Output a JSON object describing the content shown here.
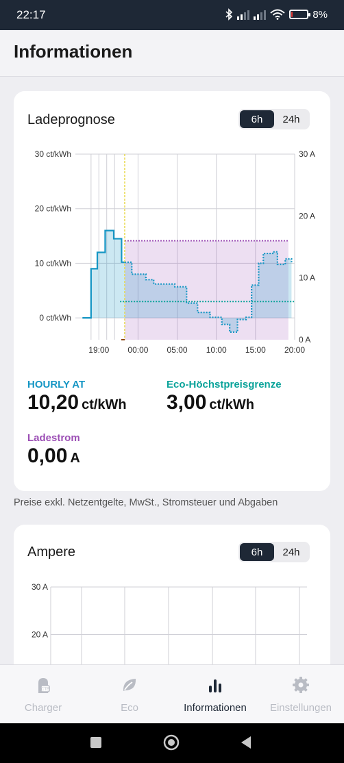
{
  "status": {
    "time": "22:17",
    "battery": "8%",
    "battery_level": 0.08
  },
  "header": {
    "title": "Informationen"
  },
  "forecast_card": {
    "title": "Ladeprognose",
    "range_options": [
      "6h",
      "24h"
    ],
    "selected_range": "6h",
    "metrics": {
      "hourly_label": "HOURLY AT",
      "hourly_value": "10,20",
      "hourly_unit": "ct/kWh",
      "eco_label": "Eco-Höchstpreisgrenze",
      "eco_value": "3,00",
      "eco_unit": "ct/kWh",
      "current_label": "Ladestrom",
      "current_value": "0,00",
      "current_unit": "A"
    }
  },
  "price_note": "Preise exkl. Netzentgelte, MwSt., Stromsteuer und Abgaben",
  "ampere_card": {
    "title": "Ampere",
    "range_options": [
      "6h",
      "24h"
    ],
    "selected_range": "6h"
  },
  "nav": {
    "items": [
      {
        "label": "Charger",
        "icon": "charger-icon",
        "active": false
      },
      {
        "label": "Eco",
        "icon": "leaf-icon",
        "active": false
      },
      {
        "label": "Informationen",
        "icon": "bar-chart-icon",
        "active": true
      },
      {
        "label": "Einstellungen",
        "icon": "gear-icon",
        "active": false
      }
    ]
  },
  "colors": {
    "dark": "#1e2836",
    "price": "#1596c4",
    "eco": "#0aa39a",
    "current": "#9c4fb5",
    "now_line": "#e8d84a"
  },
  "chart_data": [
    {
      "type": "line",
      "x_axis": "hour of day",
      "x_ticks": [
        "19:00",
        "00:00",
        "05:00",
        "10:00",
        "15:00",
        "20:00"
      ],
      "xlim": [
        16,
        44
      ],
      "y_left_ticks": [
        "0 ct/kWh",
        "10 ct/kWh",
        "20 ct/kWh",
        "30 ct/kWh"
      ],
      "ylim_left": [
        -4,
        30
      ],
      "y_right_ticks": [
        "0 A",
        "10 A",
        "20 A",
        "30 A"
      ],
      "ylim_right": [
        0,
        30
      ],
      "now": 22.3,
      "series": [
        {
          "role": "price_history",
          "style": "solid",
          "values": [
            [
              16.9,
              0
            ],
            [
              18.0,
              0
            ],
            [
              18.0,
              9
            ],
            [
              18.8,
              9
            ],
            [
              18.8,
              12
            ],
            [
              19.8,
              12
            ],
            [
              19.8,
              16
            ],
            [
              20.9,
              16
            ],
            [
              20.9,
              14.5
            ],
            [
              21.9,
              14.5
            ],
            [
              21.9,
              10.2
            ],
            [
              22.3,
              10.2
            ]
          ]
        },
        {
          "role": "price_forecast",
          "style": "dotted",
          "values": [
            [
              22.3,
              10.2
            ],
            [
              23.2,
              10.2
            ],
            [
              23.2,
              8
            ],
            [
              25.0,
              8
            ],
            [
              25.0,
              7
            ],
            [
              26.0,
              7
            ],
            [
              26.0,
              6.2
            ],
            [
              28.7,
              6.2
            ],
            [
              28.7,
              5.7
            ],
            [
              30.2,
              5.7
            ],
            [
              30.2,
              2.7
            ],
            [
              31.6,
              2.7
            ],
            [
              31.6,
              1
            ],
            [
              33.2,
              1
            ],
            [
              33.2,
              0.1
            ],
            [
              34.7,
              0.1
            ],
            [
              34.7,
              -1.2
            ],
            [
              35.7,
              -1.2
            ],
            [
              35.7,
              -2.6
            ],
            [
              36.7,
              -2.6
            ],
            [
              36.7,
              -0.3
            ],
            [
              37.8,
              -0.3
            ],
            [
              37.8,
              0.1
            ],
            [
              38.5,
              0.1
            ],
            [
              38.5,
              6
            ],
            [
              39.4,
              6
            ],
            [
              39.4,
              10
            ],
            [
              40.0,
              10
            ],
            [
              40.0,
              11.8
            ],
            [
              41.2,
              11.8
            ],
            [
              41.2,
              12.1
            ],
            [
              41.8,
              12.1
            ],
            [
              41.8,
              9.8
            ],
            [
              42.8,
              9.8
            ],
            [
              42.8,
              10.8
            ],
            [
              43.6,
              10.8
            ],
            [
              43.6,
              10.2
            ]
          ]
        },
        {
          "role": "eco_price_limit",
          "style": "dotted",
          "values": [
            [
              21.7,
              3.0
            ],
            [
              44.0,
              3.0
            ]
          ]
        },
        {
          "role": "charge_current_limit_A",
          "style": "dotted",
          "values": [
            [
              22.3,
              16
            ],
            [
              43.2,
              16
            ]
          ]
        }
      ]
    },
    {
      "type": "line",
      "title": "Ampere",
      "y_ticks": [
        "30 A",
        "20 A"
      ],
      "series": []
    }
  ]
}
